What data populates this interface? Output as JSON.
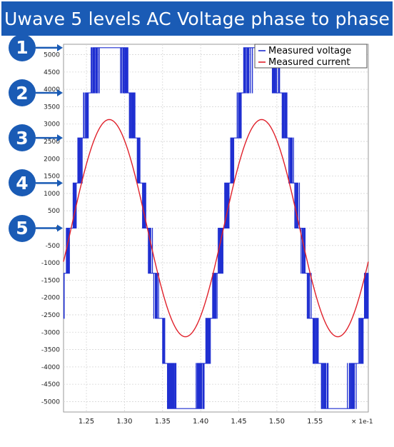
{
  "slide": {
    "title": "Uwave 5 levels AC Voltage phase to phase",
    "markers": [
      {
        "label": "1",
        "level": 5200
      },
      {
        "label": "2",
        "level": 3900
      },
      {
        "label": "3",
        "level": 2600
      },
      {
        "label": "4",
        "level": 1300
      },
      {
        "label": "5",
        "level": 0
      }
    ]
  },
  "chart_data": {
    "type": "line",
    "title": "",
    "xlabel": "",
    "ylabel": "",
    "x_multiplier_label": "× 1e-1",
    "xlim": [
      1.22,
      1.62
    ],
    "ylim": [
      -5300,
      5300
    ],
    "x_ticks": [
      1.25,
      1.3,
      1.35,
      1.4,
      1.45,
      1.5,
      1.55
    ],
    "x_tick_labels": [
      "1.25",
      "1.30",
      "1.35",
      "1.40",
      "1.45",
      "1.50",
      "1.55"
    ],
    "y_ticks": [
      5000,
      4500,
      4000,
      3500,
      3000,
      2500,
      2000,
      1500,
      1000,
      500,
      0,
      -500,
      -1000,
      -1500,
      -2000,
      -2500,
      -3000,
      -3500,
      -4000,
      -4500,
      -5000
    ],
    "y_tick_labels": [
      "5000",
      "4500",
      "4000",
      "3500",
      "3000",
      "2500",
      "2000",
      "1500",
      "1000",
      "500",
      "0",
      "-500",
      "-1000",
      "-1500",
      "-2000",
      "-2500",
      "-3000",
      "-3500",
      "-4000",
      "-4500",
      "-5000"
    ],
    "grid": true,
    "legend_position": "top-right",
    "series": [
      {
        "name": "Measured voltage",
        "color": "#1f2fd1",
        "style": "5-level stepped PWM waveform",
        "levels": [
          -5200,
          -3900,
          -2600,
          -1300,
          0,
          1300,
          2600,
          3900,
          5200
        ],
        "period": 0.2,
        "phase_zero": 1.23
      },
      {
        "name": "Measured current",
        "color": "#e0202a",
        "style": "sinusoid",
        "amplitude": 3130,
        "period": 0.2,
        "peaks_at": [
          1.28,
          1.48
        ],
        "troughs_at": [
          1.38,
          1.58
        ]
      }
    ]
  }
}
